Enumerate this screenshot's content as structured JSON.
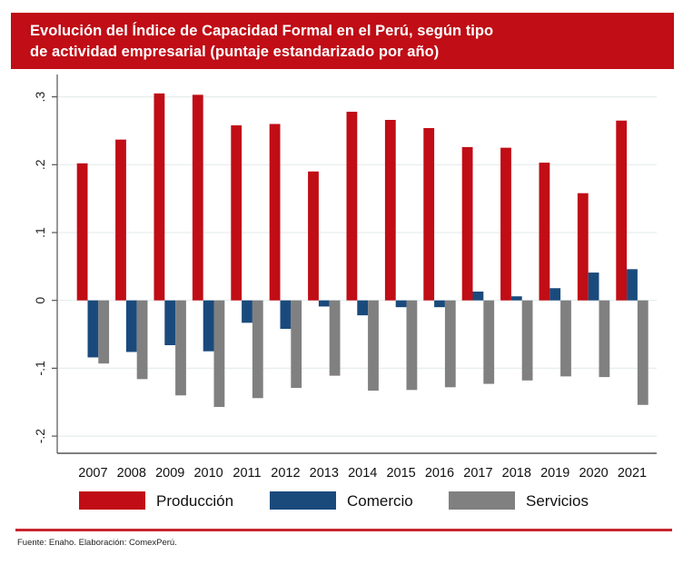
{
  "header": {
    "title_line1": "Evolución del Índice de Capacidad Formal en el Perú, según tipo",
    "title_line2": "de actividad empresarial (puntaje estandarizado por año)"
  },
  "footer": {
    "source": "Fuente: Enaho. Elaboración: ComexPerú."
  },
  "colors": {
    "banner": "#c00d16",
    "produccion": "#c00d16",
    "comercio": "#1a4a7c",
    "servicios": "#808080",
    "footer_line": "#c8262f"
  },
  "chart_data": {
    "type": "bar",
    "title": "Evolución del Índice de Capacidad Formal en el Perú, según tipo de actividad empresarial (puntaje estandarizado por año)",
    "xlabel": "",
    "ylabel": "",
    "categories": [
      "2007",
      "2008",
      "2009",
      "2010",
      "2011",
      "2012",
      "2013",
      "2014",
      "2015",
      "2016",
      "2017",
      "2018",
      "2019",
      "2020",
      "2021"
    ],
    "series": [
      {
        "name": "Producción",
        "color": "#c00d16",
        "values": [
          0.202,
          0.237,
          0.305,
          0.303,
          0.258,
          0.26,
          0.19,
          0.278,
          0.266,
          0.254,
          0.226,
          0.225,
          0.203,
          0.158,
          0.265
        ]
      },
      {
        "name": "Comercio",
        "color": "#1a4a7c",
        "values": [
          -0.084,
          -0.076,
          -0.066,
          -0.075,
          -0.033,
          -0.042,
          -0.009,
          -0.022,
          -0.01,
          -0.01,
          0.013,
          0.006,
          0.018,
          0.041,
          0.046
        ]
      },
      {
        "name": "Servicios",
        "color": "#808080",
        "values": [
          -0.093,
          -0.116,
          -0.14,
          -0.157,
          -0.144,
          -0.129,
          -0.111,
          -0.133,
          -0.132,
          -0.128,
          -0.123,
          -0.118,
          -0.112,
          -0.113,
          -0.154
        ]
      }
    ],
    "yticks": [
      -0.2,
      -0.1,
      0,
      0.1,
      0.3,
      0.2
    ],
    "ytick_labels": [
      "-.2",
      "-.1",
      "0",
      ".1",
      ".3",
      ".2"
    ],
    "ylim": [
      -0.225,
      0.33
    ],
    "grid": true,
    "legend": {
      "position": "bottom",
      "entries": [
        "Producción",
        "Comercio",
        "Servicios"
      ]
    }
  }
}
